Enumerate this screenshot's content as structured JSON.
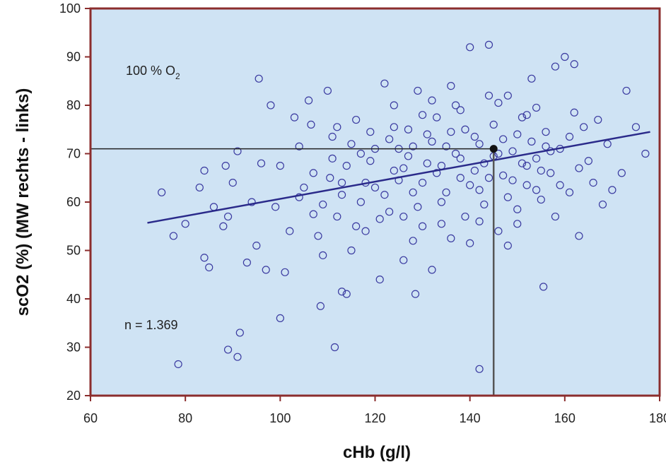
{
  "chart_data": {
    "type": "scatter",
    "xlabel": "cHb (g/l)",
    "ylabel": "scO2 (%) (MW rechts - links)",
    "xlim": [
      60,
      180
    ],
    "ylim": [
      20,
      100
    ],
    "xticks": [
      60,
      80,
      100,
      120,
      140,
      160,
      180
    ],
    "yticks": [
      20,
      30,
      40,
      50,
      60,
      70,
      80,
      90,
      100
    ],
    "annotations": {
      "oxygen_label": "100 % O",
      "oxygen_subscript": "2",
      "n_label": "n = 1.369"
    },
    "regression_line": {
      "x": [
        72,
        178
      ],
      "y": [
        55.7,
        74.5
      ]
    },
    "reference_point": {
      "x": 145,
      "y": 71
    },
    "grid": false,
    "colors": {
      "plot_background": "#cfe3f4",
      "frame": "#8b2d2d",
      "marker": "#3a3aa0",
      "regression": "#2a2a8a",
      "reference_lines": "#222222"
    },
    "points": [
      {
        "x": 78.5,
        "y": 26.5
      },
      {
        "x": 89,
        "y": 29.5
      },
      {
        "x": 91,
        "y": 28
      },
      {
        "x": 91.5,
        "y": 33
      },
      {
        "x": 100,
        "y": 36
      },
      {
        "x": 111.5,
        "y": 30
      },
      {
        "x": 142,
        "y": 25.5
      },
      {
        "x": 108.5,
        "y": 38.5
      },
      {
        "x": 113,
        "y": 41.5
      },
      {
        "x": 114,
        "y": 41
      },
      {
        "x": 128.5,
        "y": 41
      },
      {
        "x": 155.5,
        "y": 42.5
      },
      {
        "x": 75,
        "y": 62
      },
      {
        "x": 77.5,
        "y": 53
      },
      {
        "x": 80,
        "y": 55.5
      },
      {
        "x": 83,
        "y": 63
      },
      {
        "x": 84,
        "y": 66.5
      },
      {
        "x": 84,
        "y": 48.5
      },
      {
        "x": 85,
        "y": 46.5
      },
      {
        "x": 86,
        "y": 59
      },
      {
        "x": 88,
        "y": 55
      },
      {
        "x": 88.5,
        "y": 67.5
      },
      {
        "x": 89,
        "y": 57
      },
      {
        "x": 90,
        "y": 64
      },
      {
        "x": 91,
        "y": 70.5
      },
      {
        "x": 93,
        "y": 47.5
      },
      {
        "x": 94,
        "y": 60
      },
      {
        "x": 95,
        "y": 51
      },
      {
        "x": 95.5,
        "y": 85.5
      },
      {
        "x": 96,
        "y": 68
      },
      {
        "x": 97,
        "y": 46
      },
      {
        "x": 98,
        "y": 80
      },
      {
        "x": 99,
        "y": 59
      },
      {
        "x": 100,
        "y": 67.5
      },
      {
        "x": 101,
        "y": 45.5
      },
      {
        "x": 102,
        "y": 54
      },
      {
        "x": 103,
        "y": 77.5
      },
      {
        "x": 104,
        "y": 71.5
      },
      {
        "x": 105,
        "y": 63
      },
      {
        "x": 106,
        "y": 81
      },
      {
        "x": 106.5,
        "y": 76
      },
      {
        "x": 107,
        "y": 57.5
      },
      {
        "x": 108,
        "y": 53
      },
      {
        "x": 109,
        "y": 49
      },
      {
        "x": 110,
        "y": 83
      },
      {
        "x": 110.5,
        "y": 65
      },
      {
        "x": 111,
        "y": 73.5
      },
      {
        "x": 112,
        "y": 57
      },
      {
        "x": 113,
        "y": 61.5
      },
      {
        "x": 114,
        "y": 67.5
      },
      {
        "x": 115,
        "y": 50
      },
      {
        "x": 116,
        "y": 77
      },
      {
        "x": 117,
        "y": 70
      },
      {
        "x": 118,
        "y": 54
      },
      {
        "x": 119,
        "y": 74.5
      },
      {
        "x": 120,
        "y": 63
      },
      {
        "x": 121,
        "y": 44
      },
      {
        "x": 122,
        "y": 84.5
      },
      {
        "x": 123,
        "y": 58
      },
      {
        "x": 124,
        "y": 66.5
      },
      {
        "x": 125,
        "y": 71
      },
      {
        "x": 126,
        "y": 48
      },
      {
        "x": 127,
        "y": 75
      },
      {
        "x": 128,
        "y": 62
      },
      {
        "x": 129,
        "y": 83
      },
      {
        "x": 130,
        "y": 55
      },
      {
        "x": 131,
        "y": 68
      },
      {
        "x": 132,
        "y": 46
      },
      {
        "x": 133,
        "y": 77.5
      },
      {
        "x": 134,
        "y": 60
      },
      {
        "x": 135,
        "y": 71.5
      },
      {
        "x": 136,
        "y": 52.5
      },
      {
        "x": 137,
        "y": 80
      },
      {
        "x": 138,
        "y": 65
      },
      {
        "x": 139,
        "y": 57
      },
      {
        "x": 140,
        "y": 92
      },
      {
        "x": 141,
        "y": 73.5
      },
      {
        "x": 142,
        "y": 62.5
      },
      {
        "x": 143,
        "y": 68
      },
      {
        "x": 144,
        "y": 92.5
      },
      {
        "x": 145,
        "y": 76
      },
      {
        "x": 146,
        "y": 54
      },
      {
        "x": 147,
        "y": 65.5
      },
      {
        "x": 148,
        "y": 82
      },
      {
        "x": 149,
        "y": 70.5
      },
      {
        "x": 150,
        "y": 58.5
      },
      {
        "x": 151,
        "y": 77.5
      },
      {
        "x": 152,
        "y": 63.5
      },
      {
        "x": 153,
        "y": 85.5
      },
      {
        "x": 154,
        "y": 69
      },
      {
        "x": 155,
        "y": 60.5
      },
      {
        "x": 156,
        "y": 74.5
      },
      {
        "x": 157,
        "y": 66
      },
      {
        "x": 158,
        "y": 88
      },
      {
        "x": 159,
        "y": 71
      },
      {
        "x": 160,
        "y": 90
      },
      {
        "x": 161,
        "y": 62
      },
      {
        "x": 162,
        "y": 88.5
      },
      {
        "x": 163,
        "y": 53
      },
      {
        "x": 164,
        "y": 75.5
      },
      {
        "x": 165,
        "y": 68.5
      },
      {
        "x": 166,
        "y": 64
      },
      {
        "x": 167,
        "y": 77
      },
      {
        "x": 168,
        "y": 59.5
      },
      {
        "x": 169,
        "y": 72
      },
      {
        "x": 170,
        "y": 62.5
      },
      {
        "x": 172,
        "y": 66
      },
      {
        "x": 173,
        "y": 83
      },
      {
        "x": 175,
        "y": 75.5
      },
      {
        "x": 177,
        "y": 70
      },
      {
        "x": 104,
        "y": 61
      },
      {
        "x": 107,
        "y": 66
      },
      {
        "x": 109,
        "y": 59.5
      },
      {
        "x": 111,
        "y": 69
      },
      {
        "x": 113,
        "y": 64
      },
      {
        "x": 115,
        "y": 72
      },
      {
        "x": 117,
        "y": 60
      },
      {
        "x": 119,
        "y": 68.5
      },
      {
        "x": 121,
        "y": 56.5
      },
      {
        "x": 123,
        "y": 73
      },
      {
        "x": 125,
        "y": 64.5
      },
      {
        "x": 127,
        "y": 69.5
      },
      {
        "x": 129,
        "y": 59
      },
      {
        "x": 131,
        "y": 74
      },
      {
        "x": 133,
        "y": 66
      },
      {
        "x": 135,
        "y": 62
      },
      {
        "x": 137,
        "y": 70
      },
      {
        "x": 139,
        "y": 75
      },
      {
        "x": 141,
        "y": 66.5
      },
      {
        "x": 143,
        "y": 59.5
      },
      {
        "x": 145,
        "y": 69.5
      },
      {
        "x": 147,
        "y": 73
      },
      {
        "x": 149,
        "y": 64.5
      },
      {
        "x": 151,
        "y": 68
      },
      {
        "x": 153,
        "y": 72.5
      },
      {
        "x": 155,
        "y": 66.5
      },
      {
        "x": 157,
        "y": 70.5
      },
      {
        "x": 159,
        "y": 63.5
      },
      {
        "x": 161,
        "y": 73.5
      },
      {
        "x": 163,
        "y": 67
      },
      {
        "x": 118,
        "y": 64
      },
      {
        "x": 120,
        "y": 71
      },
      {
        "x": 122,
        "y": 61.5
      },
      {
        "x": 124,
        "y": 75.5
      },
      {
        "x": 126,
        "y": 67
      },
      {
        "x": 128,
        "y": 71.5
      },
      {
        "x": 130,
        "y": 64
      },
      {
        "x": 132,
        "y": 72.5
      },
      {
        "x": 134,
        "y": 67.5
      },
      {
        "x": 136,
        "y": 74.5
      },
      {
        "x": 138,
        "y": 69
      },
      {
        "x": 140,
        "y": 63.5
      },
      {
        "x": 142,
        "y": 72
      },
      {
        "x": 144,
        "y": 65
      },
      {
        "x": 146,
        "y": 70
      },
      {
        "x": 148,
        "y": 61
      },
      {
        "x": 150,
        "y": 74
      },
      {
        "x": 152,
        "y": 67.5
      },
      {
        "x": 154,
        "y": 62.5
      },
      {
        "x": 156,
        "y": 71.5
      },
      {
        "x": 126,
        "y": 57
      },
      {
        "x": 130,
        "y": 78
      },
      {
        "x": 134,
        "y": 55.5
      },
      {
        "x": 138,
        "y": 79
      },
      {
        "x": 142,
        "y": 56
      },
      {
        "x": 146,
        "y": 80.5
      },
      {
        "x": 150,
        "y": 55.5
      },
      {
        "x": 154,
        "y": 79.5
      },
      {
        "x": 158,
        "y": 57
      },
      {
        "x": 162,
        "y": 78.5
      },
      {
        "x": 116,
        "y": 55
      },
      {
        "x": 112,
        "y": 75.5
      },
      {
        "x": 128,
        "y": 52
      },
      {
        "x": 140,
        "y": 51.5
      },
      {
        "x": 144,
        "y": 82
      },
      {
        "x": 136,
        "y": 84
      },
      {
        "x": 124,
        "y": 80
      },
      {
        "x": 132,
        "y": 81
      },
      {
        "x": 148,
        "y": 51
      },
      {
        "x": 152,
        "y": 78
      }
    ]
  }
}
